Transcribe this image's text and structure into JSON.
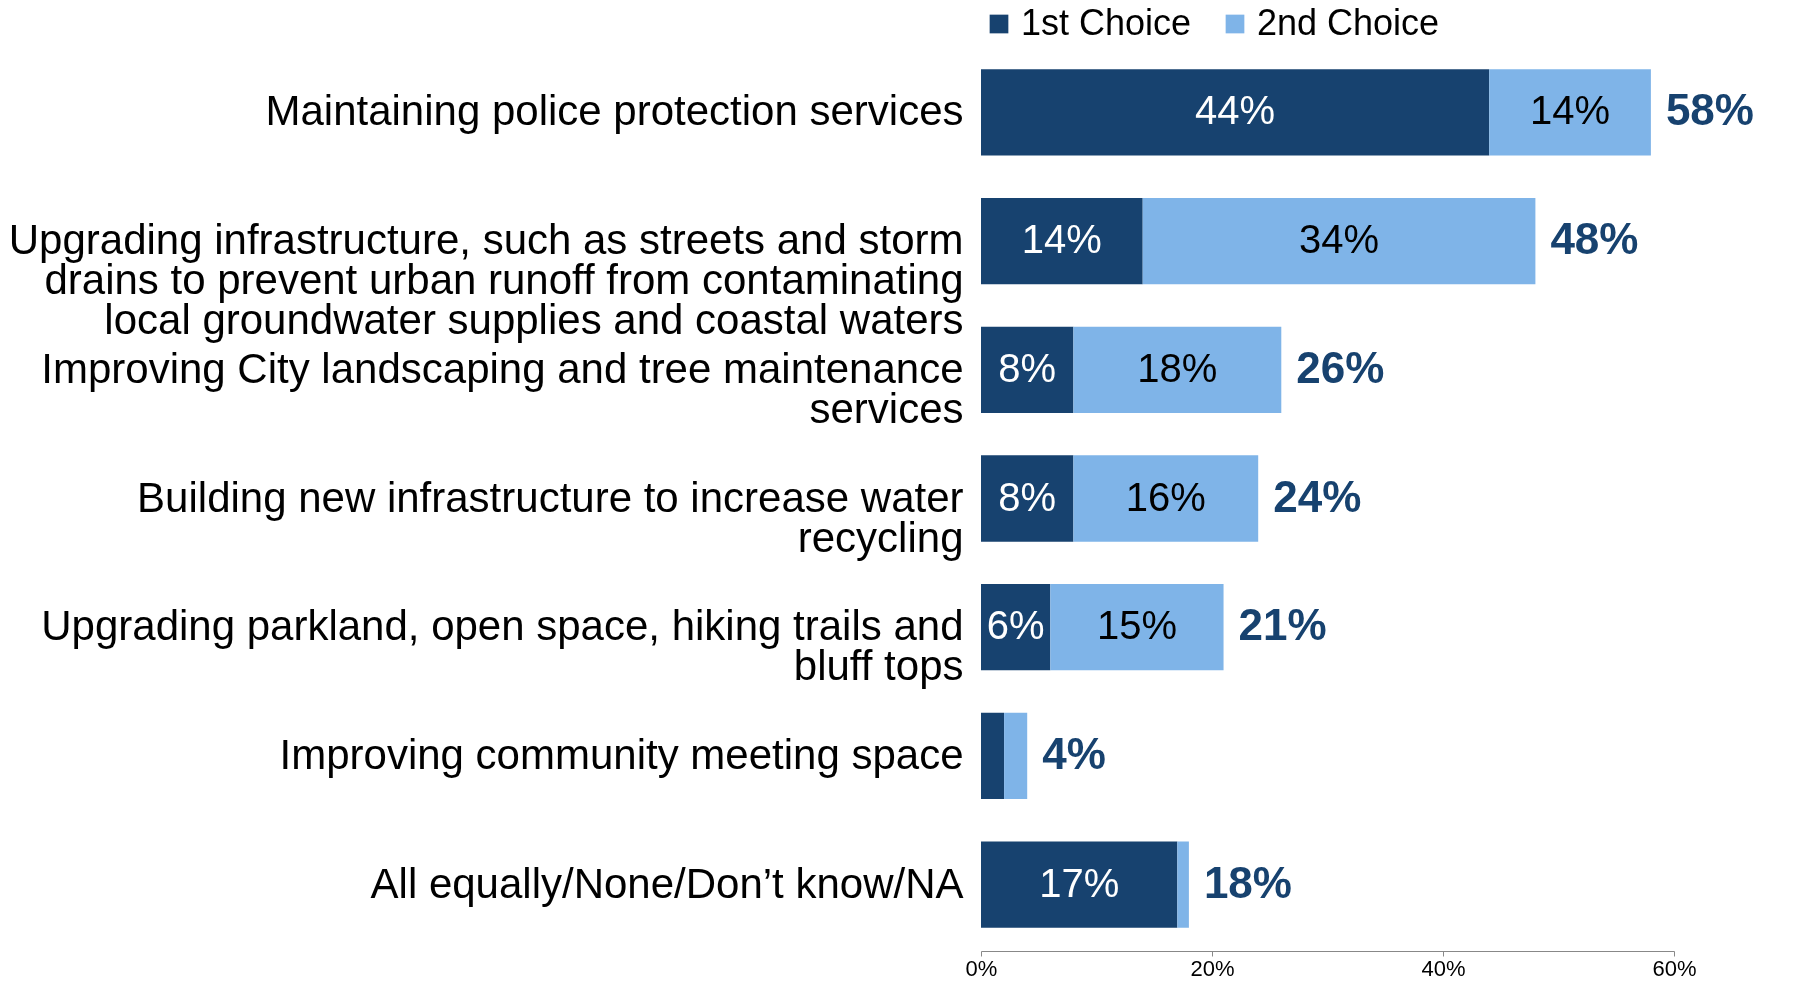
{
  "chart_data": {
    "type": "bar",
    "orientation": "horizontal",
    "stacked": true,
    "categories": [
      "Maintaining police protection services",
      "Upgrading infrastructure, such as streets and storm drains to prevent urban runoff from contaminating local groundwater supplies and coastal waters",
      "Improving City landscaping and tree maintenance services",
      "Building new infrastructure to increase water recycling",
      "Upgrading parkland, open space, hiking trails and bluff tops",
      "Improving community meeting space",
      "All equally/None/Don’t know/NA"
    ],
    "series": [
      {
        "name": "1st Choice",
        "color": "#17426f",
        "values": [
          44,
          14,
          8,
          8,
          6,
          2,
          17
        ],
        "value_labels": [
          "44%",
          "14%",
          "8%",
          "8%",
          "6%",
          null,
          "17%"
        ]
      },
      {
        "name": "2nd Choice",
        "color": "#7fb4e8",
        "values": [
          14,
          34,
          18,
          16,
          15,
          2,
          1
        ],
        "value_labels": [
          "14%",
          "34%",
          "18%",
          "16%",
          "15%",
          null,
          null
        ]
      }
    ],
    "totals": [
      "58%",
      "48%",
      "26%",
      "24%",
      "21%",
      "4%",
      "18%"
    ],
    "xlim": [
      0,
      60
    ],
    "xticks": [
      {
        "value": 0,
        "label": "0%"
      },
      {
        "value": 20,
        "label": "20%"
      },
      {
        "value": 40,
        "label": "40%"
      },
      {
        "value": 60,
        "label": "60%"
      }
    ],
    "legend": "top",
    "grid": false
  }
}
